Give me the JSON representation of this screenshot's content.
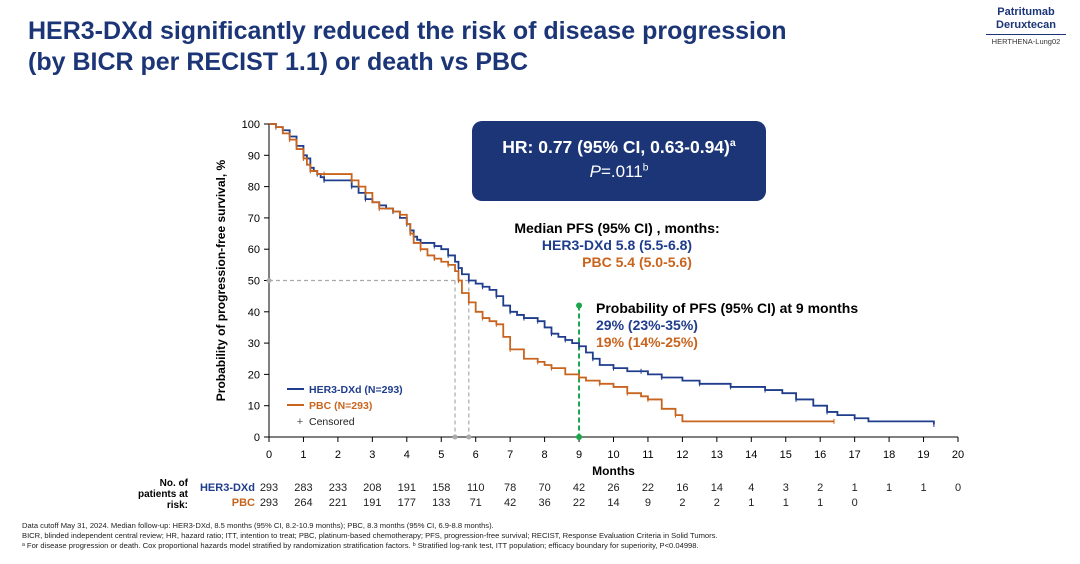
{
  "slide": {
    "title_line1": "HER3-DXd significantly reduced the risk of disease progression",
    "title_line2": "(by BICR per RECIST 1.1) or death vs PBC",
    "brand_line1": "Patritumab",
    "brand_line2": "Deruxtecan",
    "brand_line3": "HERTHENA-Lung02"
  },
  "annotations": {
    "hr_text": "HR: 0.77 (95% CI, 0.63-0.94)",
    "hr_sup": "a",
    "p_label": "P",
    "p_value": "=.011",
    "p_sup": "b",
    "median_title": "Median PFS (95% CI) , months:",
    "median_her3": "HER3-DXd 5.8 (5.5-6.8)",
    "median_pbc": "PBC 5.4 (5.0-5.6)",
    "prob_title": "Probability of PFS (95% CI) at 9 months",
    "prob_her3": "29% (23%-35%)",
    "prob_pbc": "19% (14%-25%)"
  },
  "risk_table": {
    "header_line1": "No. of",
    "header_line2": "patients at",
    "header_line3": "risk:",
    "rows": [
      {
        "name": "HER3-DXd",
        "values": [
          "293",
          "283",
          "233",
          "208",
          "191",
          "158",
          "110",
          "78",
          "70",
          "42",
          "26",
          "22",
          "16",
          "14",
          "4",
          "3",
          "2",
          "1",
          "1",
          "1",
          "0"
        ]
      },
      {
        "name": "PBC",
        "values": [
          "293",
          "264",
          "221",
          "191",
          "177",
          "133",
          "71",
          "42",
          "36",
          "22",
          "14",
          "9",
          "2",
          "2",
          "1",
          "1",
          "1",
          "0"
        ]
      }
    ]
  },
  "footnotes": {
    "line1": "Data cutoff May 31, 2024. Median follow-up: HER3-DXd, 8.5 months (95% CI, 8.2-10.9 months); PBC, 8.3 months (95% CI, 6.9-8.8 months).",
    "line2": "BICR, blinded independent central review; HR, hazard ratio; ITT, intention to treat; PBC, platinum-based chemotherapy; PFS, progression-free survival; RECIST, Response Evaluation Criteria in Solid Tumors.",
    "line3": "ᵃ For disease progression or death. Cox proportional hazards model stratified by randomization stratification factors. ᵇ Stratified log-rank test, ITT population; efficacy boundary for superiority, P<0.04998."
  },
  "chart_data": {
    "type": "line",
    "xlabel": "Months",
    "ylabel": "Probability of progression-free survival, %",
    "xlim": [
      0,
      20
    ],
    "ylim": [
      0,
      100
    ],
    "xticks": [
      0,
      1,
      2,
      3,
      4,
      5,
      6,
      7,
      8,
      9,
      10,
      11,
      12,
      13,
      14,
      15,
      16,
      17,
      18,
      19,
      20
    ],
    "yticks": [
      0,
      10,
      20,
      30,
      40,
      50,
      60,
      70,
      80,
      90,
      100
    ],
    "legend_position": "bottom-left",
    "legend": {
      "censored_label": "Censored"
    },
    "colors": {
      "her3": "#1f3d8c",
      "pbc": "#c8641e",
      "guide": "#aaaaaa",
      "marker": "#1aa64b"
    },
    "median_her3": 5.8,
    "median_pbc": 5.4,
    "landmark_month": 9,
    "series": [
      {
        "name": "HER3-DXd (N=293)",
        "color": "#1f3d8c",
        "x": [
          0,
          0.2,
          0.4,
          0.6,
          0.8,
          1.0,
          1.1,
          1.2,
          1.3,
          1.4,
          1.5,
          1.6,
          2.0,
          2.4,
          2.6,
          2.8,
          3.0,
          3.2,
          3.4,
          3.6,
          3.8,
          4.0,
          4.1,
          4.2,
          4.3,
          4.4,
          4.6,
          4.8,
          5.0,
          5.2,
          5.4,
          5.5,
          5.6,
          5.8,
          6.0,
          6.2,
          6.4,
          6.6,
          6.8,
          7.0,
          7.2,
          7.4,
          7.6,
          7.8,
          8.0,
          8.2,
          8.4,
          8.6,
          8.8,
          9.0,
          9.2,
          9.4,
          9.6,
          10.0,
          10.4,
          10.8,
          11.0,
          11.4,
          12.0,
          12.5,
          12.9,
          13.4,
          14.0,
          14.4,
          14.9,
          15.3,
          15.8,
          16.2,
          16.5,
          17.0,
          17.4,
          19.3
        ],
        "y": [
          100,
          99,
          98,
          96,
          93,
          90,
          89,
          86,
          85,
          84,
          83,
          82,
          82,
          80,
          78,
          76,
          75,
          74,
          73,
          72,
          70,
          68,
          66,
          64,
          63,
          62,
          62,
          61,
          60,
          58,
          56,
          54,
          52,
          50,
          49,
          48,
          47,
          45,
          42,
          40,
          39,
          38,
          38,
          37,
          35,
          33,
          32,
          31,
          30,
          29,
          27,
          25,
          23,
          22,
          21,
          21,
          20,
          19,
          18,
          17,
          17,
          16,
          16,
          15,
          14,
          12,
          10,
          8,
          7,
          6,
          5,
          4
        ]
      },
      {
        "name": "PBC (N=293)",
        "color": "#c8641e",
        "x": [
          0,
          0.2,
          0.4,
          0.6,
          0.8,
          1.0,
          1.1,
          1.2,
          1.4,
          1.6,
          2.0,
          2.4,
          2.6,
          2.8,
          3.0,
          3.2,
          3.6,
          3.8,
          4.0,
          4.1,
          4.2,
          4.4,
          4.6,
          4.8,
          5.0,
          5.2,
          5.4,
          5.5,
          5.6,
          5.8,
          6.0,
          6.2,
          6.4,
          6.6,
          6.8,
          7.0,
          7.4,
          7.8,
          8.0,
          8.2,
          8.6,
          9.0,
          9.2,
          9.6,
          10.0,
          10.4,
          10.8,
          11.0,
          11.4,
          11.8,
          12.0,
          16.4
        ],
        "y": [
          100,
          99,
          97,
          95,
          92,
          89,
          87,
          85,
          84,
          84,
          84,
          82,
          80,
          78,
          75,
          73,
          72,
          71,
          68,
          65,
          62,
          60,
          58,
          57,
          56,
          55,
          53,
          50,
          46,
          43,
          40,
          38,
          37,
          36,
          32,
          28,
          25,
          24,
          23,
          22,
          20,
          19,
          18,
          17,
          16,
          14,
          13,
          12,
          9,
          7,
          5,
          5
        ]
      }
    ]
  }
}
